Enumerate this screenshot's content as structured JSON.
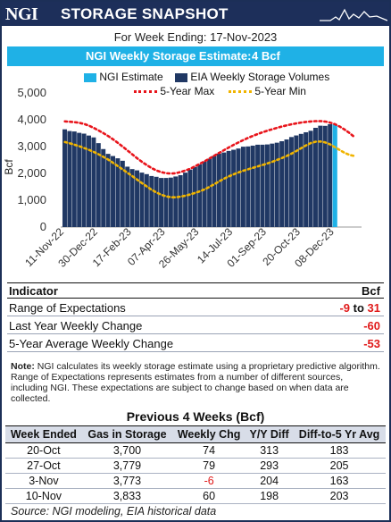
{
  "header": {
    "logo": "NGI",
    "title": "STORAGE SNAPSHOT"
  },
  "week_ending": "For Week Ending: 17-Nov-2023",
  "estimate": {
    "label": "NGI Weekly Storage Estimate:",
    "value": "4 Bcf"
  },
  "colors": {
    "navy": "#1d2f5a",
    "bar": "#203864",
    "estimate": "#1fb1e6",
    "max": "#e8141b",
    "min": "#f0b400",
    "negative": "#e01a1a"
  },
  "legend": {
    "ngi": "NGI Estimate",
    "eia": "EIA Weekly Storage Volumes",
    "max": "5-Year Max",
    "min": "5-Year Min"
  },
  "chart_data": {
    "type": "bar",
    "ylabel": "Bcf",
    "ylim": [
      0,
      5000
    ],
    "yticks": [
      "0",
      "1,000",
      "2,000",
      "3,000",
      "4,000",
      "5,000"
    ],
    "xticks": [
      "11-Nov-22",
      "30-Dec-22",
      "17-Feb-23",
      "07-Apr-23",
      "26-May-23",
      "14-Jul-23",
      "01-Sep-23",
      "20-Oct-23",
      "08-Dec-23"
    ],
    "series": [
      {
        "name": "EIA Weekly Storage Volumes",
        "values": [
          3644,
          3580,
          3564,
          3513,
          3483,
          3412,
          3342,
          3129,
          2908,
          2729,
          2648,
          2563,
          2471,
          2251,
          2161,
          2114,
          2030,
          1973,
          1903,
          1873,
          1830,
          1830,
          1843,
          1885,
          1934,
          2028,
          2141,
          2240,
          2336,
          2446,
          2547,
          2650,
          2734,
          2779,
          2838,
          2882,
          2928,
          2996,
          3006,
          3035,
          3070,
          3070,
          3080,
          3111,
          3145,
          3200,
          3266,
          3356,
          3415,
          3473,
          3534,
          3590,
          3700,
          3779,
          3773,
          3833
        ]
      },
      {
        "name": "NGI Estimate",
        "values": [
          3837
        ]
      },
      {
        "name": "5-Year Max",
        "values": [
          3940,
          3920,
          3900,
          3840,
          3750,
          3620,
          3480,
          3330,
          3150,
          2960,
          2760,
          2560,
          2380,
          2220,
          2100,
          2020,
          1990,
          2010,
          2080,
          2170,
          2290,
          2420,
          2560,
          2700,
          2840,
          2980,
          3110,
          3230,
          3340,
          3440,
          3530,
          3610,
          3680,
          3750,
          3810,
          3860,
          3900,
          3930,
          3950,
          3950,
          3920,
          3840,
          3720,
          3560,
          3360
        ]
      },
      {
        "name": "5-Year Min",
        "values": [
          3170,
          3110,
          3040,
          2960,
          2870,
          2770,
          2650,
          2520,
          2370,
          2210,
          2050,
          1890,
          1720,
          1560,
          1400,
          1270,
          1170,
          1110,
          1110,
          1140,
          1190,
          1260,
          1340,
          1440,
          1560,
          1700,
          1820,
          1930,
          2020,
          2100,
          2170,
          2240,
          2310,
          2380,
          2460,
          2550,
          2650,
          2760,
          2890,
          3030,
          3140,
          3200,
          3180,
          3090,
          2960,
          2820,
          2700,
          2650
        ]
      }
    ]
  },
  "indicators": {
    "header_label": "Indicator",
    "header_unit": "Bcf",
    "rows": [
      {
        "label": "Range of Expectations",
        "low": "-9",
        "to": "to",
        "high": "31"
      },
      {
        "label": "Last Year Weekly Change",
        "value": "-60"
      },
      {
        "label": "5-Year Average Weekly Change",
        "value": "-53"
      }
    ]
  },
  "note": {
    "bold": "Note:",
    "text": " NGI calculates its weekly storage estimate using a proprietary predictive algorithm. Range of Expectations represents estimates from a number of different sources, including NGI. These expectations are subject to change based on when data are collected."
  },
  "previous": {
    "title": "Previous 4 Weeks (Bcf)",
    "columns": [
      "Week Ended",
      "Gas in Storage",
      "Weekly Chg",
      "Y/Y Diff",
      "Diff-to-5 Yr Avg"
    ],
    "rows": [
      [
        "20-Oct",
        "3,700",
        "74",
        "313",
        "183"
      ],
      [
        "27-Oct",
        "3,779",
        "79",
        "293",
        "205"
      ],
      [
        "3-Nov",
        "3,773",
        "-6",
        "204",
        "163"
      ],
      [
        "10-Nov",
        "3,833",
        "60",
        "198",
        "203"
      ]
    ]
  },
  "source": "Source: NGI modeling, EIA historical data"
}
